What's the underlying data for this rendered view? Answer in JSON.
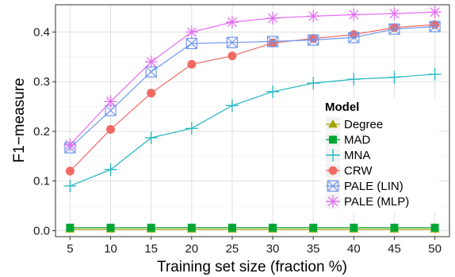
{
  "chart_data": {
    "type": "line",
    "xlabel": "Training set size (fraction %)",
    "ylabel": "F1−measure",
    "x": [
      5,
      10,
      15,
      20,
      25,
      30,
      35,
      40,
      45,
      50
    ],
    "xlim": [
      3.2,
      51.8
    ],
    "ylim": [
      -0.012,
      0.455
    ],
    "y_ticks": [
      0.0,
      0.1,
      0.2,
      0.3,
      0.4
    ],
    "y_tick_labels": [
      "0.0",
      "0.1",
      "0.2",
      "0.3",
      "0.4"
    ],
    "x_tick_labels": [
      "5",
      "10",
      "15",
      "20",
      "25",
      "30",
      "35",
      "40",
      "45",
      "50"
    ],
    "grid": true,
    "legend_position": "right",
    "legend_title": "Model",
    "series": [
      {
        "name": "Degree",
        "marker": "triangle",
        "color": "#a3a500",
        "values": [
          0.003,
          0.003,
          0.003,
          0.003,
          0.003,
          0.003,
          0.003,
          0.003,
          0.003,
          0.003
        ]
      },
      {
        "name": "MAD",
        "marker": "square",
        "color": "#00a635",
        "values": [
          0.006,
          0.006,
          0.006,
          0.006,
          0.006,
          0.006,
          0.006,
          0.006,
          0.006,
          0.006
        ]
      },
      {
        "name": "MNA",
        "marker": "plus",
        "color": "#20b5bf",
        "values": [
          0.09,
          0.123,
          0.187,
          0.206,
          0.252,
          0.28,
          0.297,
          0.305,
          0.309,
          0.315
        ]
      },
      {
        "name": "CRW",
        "marker": "circle",
        "color": "#f06a63",
        "values": [
          0.12,
          0.204,
          0.277,
          0.335,
          0.352,
          0.378,
          0.387,
          0.395,
          0.409,
          0.415
        ]
      },
      {
        "name": "PALE (LIN)",
        "marker": "square-x",
        "color": "#6f96ee",
        "values": [
          0.167,
          0.242,
          0.32,
          0.377,
          0.379,
          0.381,
          0.384,
          0.389,
          0.406,
          0.411
        ]
      },
      {
        "name": "PALE (MLP)",
        "marker": "star",
        "color": "#e36ef0",
        "values": [
          0.173,
          0.26,
          0.34,
          0.4,
          0.42,
          0.428,
          0.432,
          0.435,
          0.437,
          0.44
        ]
      }
    ]
  }
}
